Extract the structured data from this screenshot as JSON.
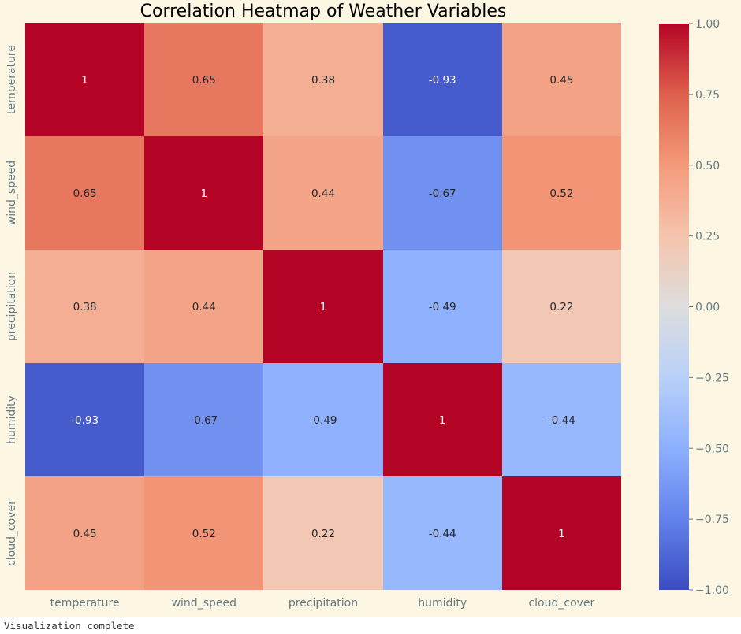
{
  "chart_data": {
    "type": "heatmap",
    "title": "Correlation Heatmap of Weather Variables",
    "xlabel": "",
    "ylabel": "",
    "x_categories": [
      "temperature",
      "wind_speed",
      "precipitation",
      "humidity",
      "cloud_cover"
    ],
    "y_categories": [
      "temperature",
      "wind_speed",
      "precipitation",
      "humidity",
      "cloud_cover"
    ],
    "values": [
      [
        1,
        0.65,
        0.38,
        -0.93,
        0.45
      ],
      [
        0.65,
        1,
        0.44,
        -0.67,
        0.52
      ],
      [
        0.38,
        0.44,
        1,
        -0.49,
        0.22
      ],
      [
        -0.93,
        -0.67,
        -0.49,
        1,
        -0.44
      ],
      [
        0.45,
        0.52,
        0.22,
        -0.44,
        1
      ]
    ],
    "annotations": [
      [
        "1",
        "0.65",
        "0.38",
        "-0.93",
        "0.45"
      ],
      [
        "0.65",
        "1",
        "0.44",
        "-0.67",
        "0.52"
      ],
      [
        "0.38",
        "0.44",
        "1",
        "-0.49",
        "0.22"
      ],
      [
        "-0.93",
        "-0.67",
        "-0.49",
        "1",
        "-0.44"
      ],
      [
        "0.45",
        "0.52",
        "0.22",
        "-0.44",
        "1"
      ]
    ],
    "colormap": "coolwarm",
    "vmin": -1,
    "vmax": 1,
    "colorbar_ticks": [
      "1.00",
      "0.75",
      "0.50",
      "0.25",
      "0.00",
      "−0.25",
      "−0.50",
      "−0.75",
      "−1.00"
    ],
    "colorbar_tick_values": [
      1,
      0.75,
      0.5,
      0.25,
      0,
      -0.25,
      -0.5,
      -0.75,
      -1
    ],
    "grid": false,
    "legend": "colorbar-right"
  },
  "colors": {
    "background": "#fdf6e3",
    "tick_label": "#657b83",
    "title": "#000000"
  },
  "status": {
    "text": "Visualization complete"
  }
}
